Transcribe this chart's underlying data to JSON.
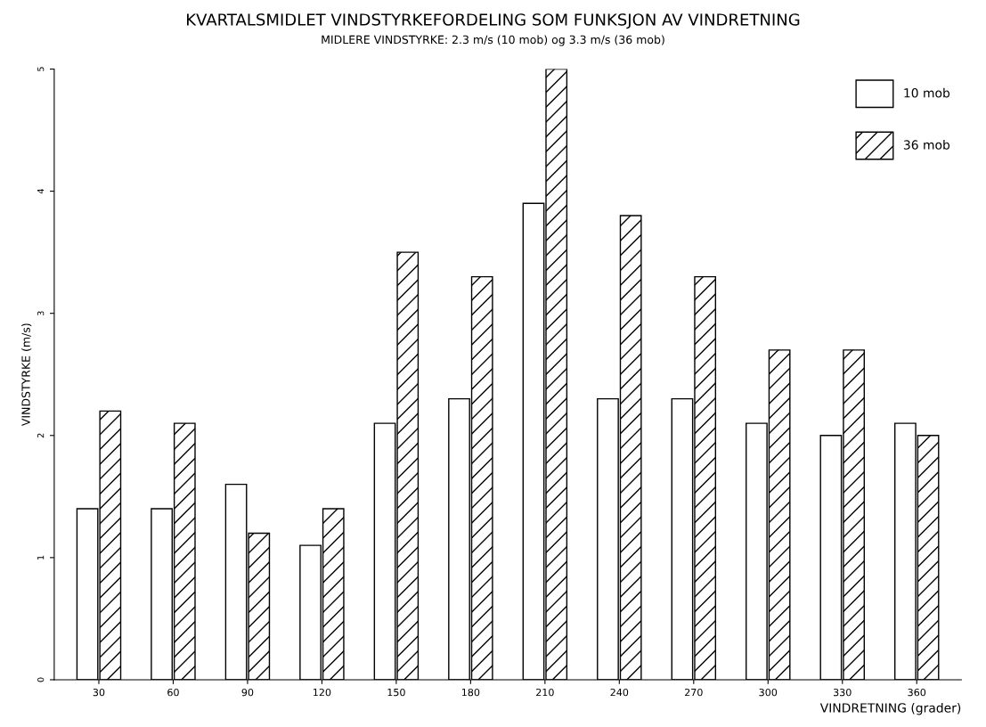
{
  "chart_data": {
    "type": "bar",
    "title": "KVARTALSMIDLET VINDSTYRKEFORDELING SOM FUNKSJON AV VINDRETNING",
    "subtitle": "MIDLERE VINDSTYRKE: 2.3 m/s (10 mob) og 3.3 m/s (36 mob)",
    "xlabel": "VINDRETNING (grader)",
    "ylabel": "VINDSTYRKE (m/s)",
    "categories": [
      "30",
      "60",
      "90",
      "120",
      "150",
      "180",
      "210",
      "240",
      "270",
      "300",
      "330",
      "360"
    ],
    "series": [
      {
        "name": "10 mob",
        "color": "#ffffff",
        "values": [
          1.4,
          1.4,
          1.6,
          1.1,
          2.1,
          2.3,
          3.9,
          2.3,
          2.3,
          2.1,
          2.0,
          2.1
        ]
      },
      {
        "name": "36 mob",
        "color": "#000000",
        "values": [
          2.2,
          2.1,
          1.2,
          1.4,
          3.5,
          3.3,
          5.0,
          3.8,
          3.3,
          2.7,
          2.7,
          2.0
        ]
      }
    ],
    "ylim": [
      0,
      5
    ],
    "yticks": [
      0,
      1,
      2,
      3,
      4,
      5
    ],
    "grid": false,
    "legend": "top right"
  }
}
